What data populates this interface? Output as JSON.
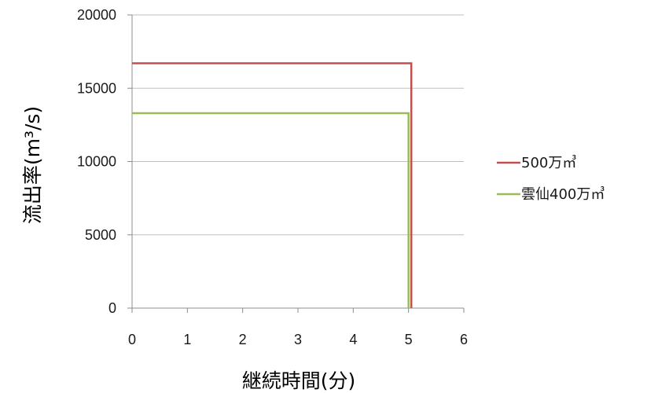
{
  "chart_data": {
    "type": "line",
    "xlabel": "継続時間(分)",
    "ylabel": "流出率(m³/s)",
    "x_ticks": [
      "0",
      "1",
      "2",
      "3",
      "4",
      "5",
      "6"
    ],
    "y_ticks": [
      "0",
      "5000",
      "10000",
      "15000",
      "20000"
    ],
    "xlim": [
      0,
      6
    ],
    "ylim": [
      0,
      20000
    ],
    "grid": "horizontal",
    "legend_position": "right",
    "series": [
      {
        "name": "500万㎥",
        "color": "#c0504d",
        "points": [
          [
            0,
            16700
          ],
          [
            5.05,
            16700
          ],
          [
            5.05,
            0
          ]
        ]
      },
      {
        "name": "雲仙400万㎥",
        "color": "#9bbb59",
        "points": [
          [
            0,
            13300
          ],
          [
            5.0,
            13300
          ],
          [
            5.0,
            0
          ]
        ]
      }
    ]
  }
}
